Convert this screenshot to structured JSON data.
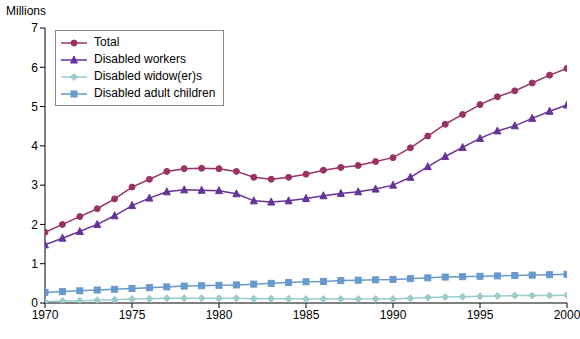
{
  "chart_data": {
    "type": "line",
    "ylabel": "Millions",
    "x": [
      1970,
      1971,
      1972,
      1973,
      1974,
      1975,
      1976,
      1977,
      1978,
      1979,
      1980,
      1981,
      1982,
      1983,
      1984,
      1985,
      1986,
      1987,
      1988,
      1989,
      1990,
      1991,
      1992,
      1993,
      1994,
      1995,
      1996,
      1997,
      1998,
      1999,
      2000
    ],
    "series": [
      {
        "name": "Total",
        "color": "#993366",
        "marker": "circle",
        "values": [
          1.8,
          2.0,
          2.2,
          2.4,
          2.65,
          2.95,
          3.15,
          3.35,
          3.42,
          3.43,
          3.42,
          3.35,
          3.2,
          3.15,
          3.2,
          3.28,
          3.38,
          3.45,
          3.5,
          3.6,
          3.7,
          3.95,
          4.25,
          4.55,
          4.8,
          5.05,
          5.25,
          5.4,
          5.6,
          5.8,
          5.97
        ]
      },
      {
        "name": "Disabled workers",
        "color": "#663399",
        "marker": "triangle",
        "values": [
          1.48,
          1.65,
          1.82,
          2.0,
          2.22,
          2.48,
          2.67,
          2.83,
          2.88,
          2.87,
          2.86,
          2.78,
          2.6,
          2.57,
          2.6,
          2.66,
          2.73,
          2.79,
          2.83,
          2.9,
          3.0,
          3.2,
          3.47,
          3.73,
          3.96,
          4.19,
          4.38,
          4.51,
          4.7,
          4.88,
          5.04
        ]
      },
      {
        "name": "Disabled widow(er)s",
        "color": "#99CCCC",
        "marker": "diamond",
        "values": [
          0.03,
          0.05,
          0.06,
          0.07,
          0.08,
          0.1,
          0.11,
          0.12,
          0.12,
          0.12,
          0.12,
          0.12,
          0.11,
          0.11,
          0.11,
          0.1,
          0.1,
          0.1,
          0.1,
          0.1,
          0.1,
          0.12,
          0.14,
          0.15,
          0.16,
          0.17,
          0.18,
          0.19,
          0.19,
          0.19,
          0.2
        ]
      },
      {
        "name": "Disabled adult children",
        "color": "#6699CC",
        "marker": "square",
        "values": [
          0.27,
          0.29,
          0.31,
          0.33,
          0.35,
          0.37,
          0.39,
          0.41,
          0.43,
          0.44,
          0.45,
          0.46,
          0.48,
          0.5,
          0.52,
          0.54,
          0.55,
          0.57,
          0.58,
          0.59,
          0.6,
          0.62,
          0.64,
          0.66,
          0.67,
          0.68,
          0.69,
          0.7,
          0.71,
          0.72,
          0.73
        ]
      }
    ],
    "xlim": [
      1970,
      2000
    ],
    "xticks": [
      1970,
      1975,
      1980,
      1985,
      1990,
      1995,
      2000
    ],
    "ylim": [
      0,
      7
    ],
    "yticks": [
      0,
      1,
      2,
      3,
      4,
      5,
      6,
      7
    ],
    "grid": false,
    "legend": "upper left"
  }
}
